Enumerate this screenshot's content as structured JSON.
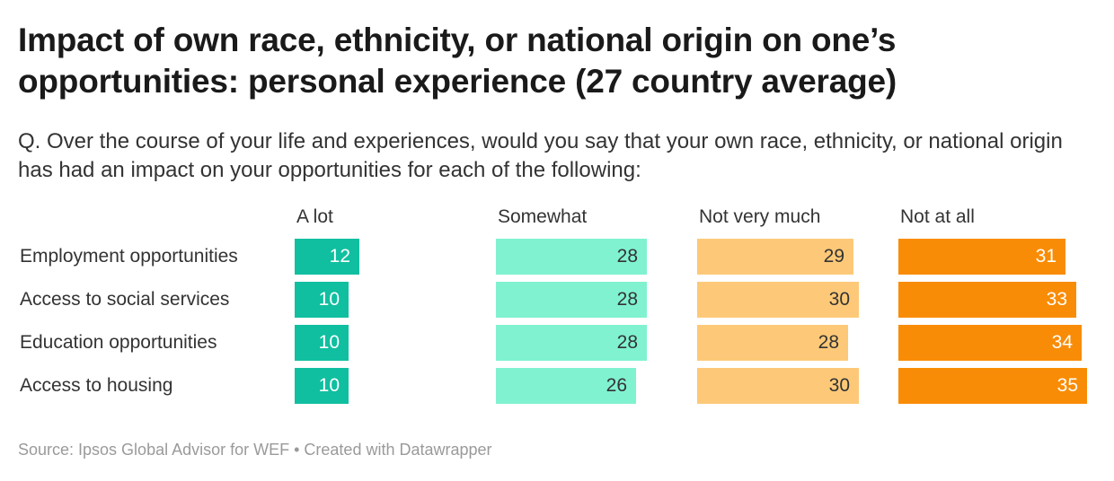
{
  "chart_data": {
    "type": "bar",
    "title": "Impact of own race, ethnicity, or national origin on one’s opportunities: personal experience (27 country average)",
    "subtitle": "Q. Over the course of your life and experiences, would you say that your own race, ethnicity, or national origin has had an impact on your opportunities for each of the following:",
    "categories": [
      "Employment opportunities",
      "Access to social services",
      "Education opportunities",
      "Access to housing"
    ],
    "series": [
      {
        "name": "A lot",
        "values": [
          12,
          10,
          10,
          10
        ],
        "color": "#10bfa0",
        "label_color": "#ffffff"
      },
      {
        "name": "Somewhat",
        "values": [
          28,
          28,
          28,
          26
        ],
        "color": "#80f2d0",
        "label_color": "#333333"
      },
      {
        "name": "Not very much",
        "values": [
          29,
          30,
          28,
          30
        ],
        "color": "#fdc978",
        "label_color": "#333333"
      },
      {
        "name": "Not at all",
        "values": [
          31,
          33,
          34,
          35
        ],
        "color": "#f98c06",
        "label_color": "#ffffff"
      }
    ],
    "xlim": [
      0,
      40
    ],
    "source": "Source: Ipsos Global Advisor for WEF • Created with Datawrapper"
  }
}
